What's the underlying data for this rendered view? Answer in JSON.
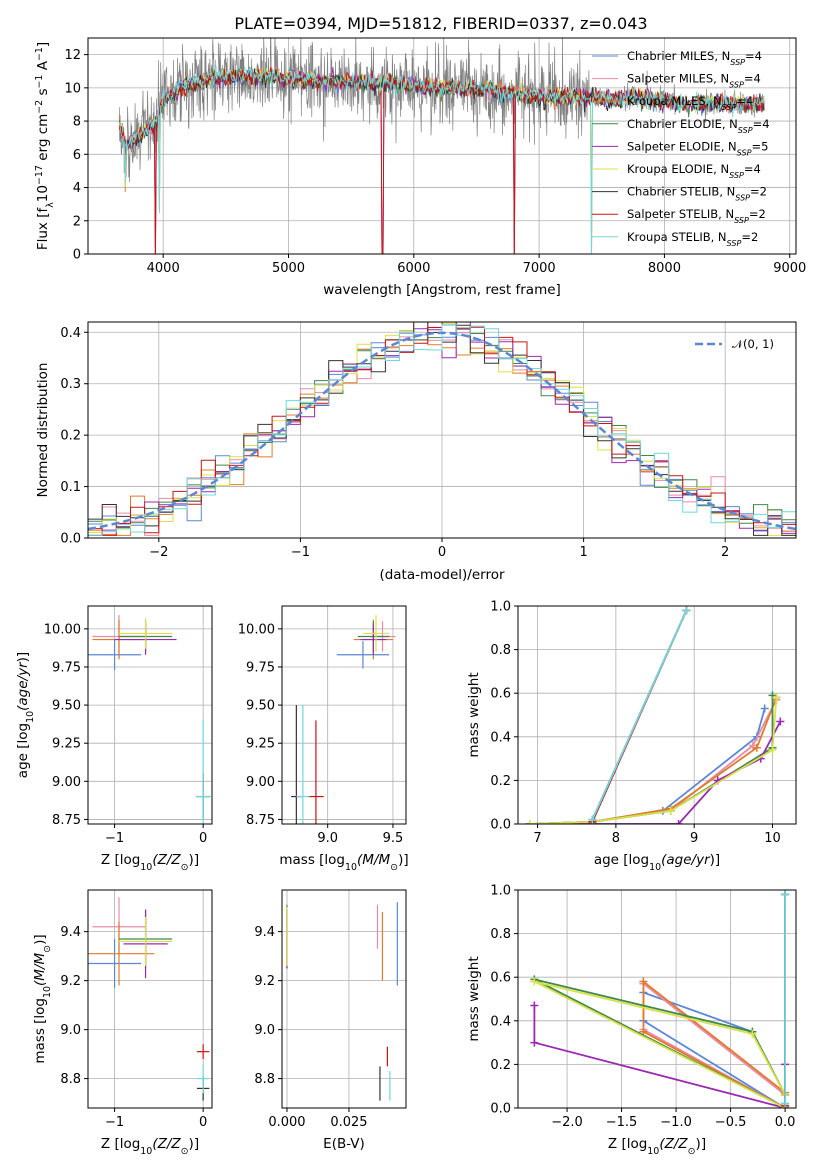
{
  "title": "PLATE=0394, MJD=51812, FIBERID=0337, z=0.043",
  "colors": {
    "chabrier_miles": "#5b87d6",
    "salpeter_miles": "#e98ba8",
    "kroupa_miles": "#e07b2a",
    "chabrier_elodie": "#3f8a4a",
    "salpeter_elodie": "#9b2ab0",
    "kroupa_elodie": "#d9e04a",
    "chabrier_stelib": "#333333",
    "salpeter_stelib": "#c81414",
    "kroupa_stelib": "#6fd8dc"
  },
  "legend_spectrum": [
    {
      "base": "Chabrier MILES, N",
      "sub": "SSP",
      "tail": "=4",
      "color": "#5b87d6"
    },
    {
      "base": "Salpeter MILES, N",
      "sub": "SSP",
      "tail": "=4",
      "color": "#e98ba8"
    },
    {
      "base": "Kroupa MILES, N",
      "sub": "SSP",
      "tail": "=4",
      "color": "#e07b2a"
    },
    {
      "base": "Chabrier ELODIE, N",
      "sub": "SSP",
      "tail": "=4",
      "color": "#3f8a4a"
    },
    {
      "base": "Salpeter ELODIE, N",
      "sub": "SSP",
      "tail": "=5",
      "color": "#9b2ab0"
    },
    {
      "base": "Kroupa ELODIE, N",
      "sub": "SSP",
      "tail": "=4",
      "color": "#d9e04a"
    },
    {
      "base": "Chabrier STELIB, N",
      "sub": "SSP",
      "tail": "=2",
      "color": "#333333"
    },
    {
      "base": "Salpeter STELIB, N",
      "sub": "SSP",
      "tail": "=2",
      "color": "#c81414"
    },
    {
      "base": "Kroupa STELIB, N",
      "sub": "SSP",
      "tail": "=2",
      "color": "#6fd8dc"
    }
  ],
  "legend_hist": {
    "label": "𝒩(0, 1)",
    "color": "#5b87d6"
  },
  "chart_data": [
    {
      "id": "spectrum",
      "type": "line",
      "xlabel": "wavelength [Angstrom, rest frame]",
      "ylabel": "Flux [f",
      "ylabel_sub": "λ",
      "ylabel_tail": "10",
      "ylabel_exp1": "−17",
      "ylabel_mid": " erg cm",
      "ylabel_exp2": "−2",
      "ylabel_mid2": " s",
      "ylabel_exp3": "−1",
      "ylabel_mid3": " A",
      "ylabel_exp4": "−1",
      "ylabel_end": "]",
      "xlim": [
        3400,
        9050
      ],
      "ylim": [
        0,
        13
      ],
      "xticks": [
        4000,
        5000,
        6000,
        7000,
        8000,
        9000
      ],
      "yticks": [
        0,
        2,
        4,
        6,
        8,
        10,
        12
      ],
      "xtick_labels": [
        "4000",
        "5000",
        "6000",
        "7000",
        "8000",
        "9000"
      ],
      "ytick_labels": [
        "0",
        "2",
        "4",
        "6",
        "8",
        "10",
        "12"
      ],
      "x_range_data": [
        3650,
        8800
      ],
      "continuum": [
        [
          3650,
          7.8
        ],
        [
          3700,
          6.5
        ],
        [
          3800,
          7.0
        ],
        [
          3900,
          7.6
        ],
        [
          3950,
          8.0
        ],
        [
          4000,
          9.2
        ],
        [
          4100,
          9.8
        ],
        [
          4200,
          10.2
        ],
        [
          4300,
          10.3
        ],
        [
          4400,
          10.6
        ],
        [
          4600,
          10.7
        ],
        [
          4800,
          10.7
        ],
        [
          5000,
          10.6
        ],
        [
          5200,
          10.4
        ],
        [
          5400,
          10.4
        ],
        [
          5600,
          10.3
        ],
        [
          5800,
          10.3
        ],
        [
          6000,
          10.1
        ],
        [
          6200,
          10.0
        ],
        [
          6400,
          9.95
        ],
        [
          6600,
          9.9
        ],
        [
          6800,
          9.6
        ],
        [
          7000,
          9.5
        ],
        [
          7200,
          9.4
        ],
        [
          7400,
          9.4
        ],
        [
          7600,
          9.3
        ],
        [
          7800,
          9.4
        ],
        [
          8000,
          9.2
        ],
        [
          8200,
          9.0
        ],
        [
          8400,
          9.1
        ],
        [
          8600,
          9.0
        ],
        [
          8800,
          9.05
        ]
      ]
    },
    {
      "id": "residual_hist",
      "type": "histogram",
      "xlabel": "(data-model)/error",
      "ylabel": "Normed distribution",
      "xlim": [
        -2.5,
        2.5
      ],
      "ylim": [
        0,
        0.42
      ],
      "xticks": [
        -2,
        -1,
        0,
        1,
        2
      ],
      "yticks": [
        0,
        0.1,
        0.2,
        0.3,
        0.4
      ],
      "xtick_labels": [
        "−2",
        "−1",
        "0",
        "1",
        "2"
      ],
      "ytick_labels": [
        "0.0",
        "0.1",
        "0.2",
        "0.3",
        "0.4"
      ],
      "bin_width": 0.1,
      "legend": "top-right"
    },
    {
      "id": "age_vs_Z",
      "type": "errorbar",
      "xlabel": "Z [log",
      "xlabel_sub": "10",
      "xlabel_tail": "(Z/Z",
      "xlabel_end": ")]",
      "ylabel": "age  [log",
      "ylabel_sub": "10",
      "ylabel_tail": "(age/yr)]",
      "xlim": [
        -1.3,
        0.1
      ],
      "ylim": [
        8.72,
        10.15
      ],
      "xticks": [
        -1,
        0
      ],
      "xtick_labels": [
        "−1",
        "0"
      ],
      "yticks": [
        8.75,
        9.0,
        9.25,
        9.5,
        9.75,
        10.0
      ],
      "ytick_labels": [
        "8.75",
        "9.00",
        "9.25",
        "9.50",
        "9.75",
        "10.00"
      ],
      "points": [
        {
          "x": -1.0,
          "xerr": 0.3,
          "y": 9.83,
          "yerr": 0.1,
          "color": "#5b87d6"
        },
        {
          "x": -0.95,
          "xerr": 0.3,
          "y": 9.95,
          "yerr": 0.14,
          "color": "#e98ba8"
        },
        {
          "x": -0.95,
          "xerr": 0.3,
          "y": 9.93,
          "yerr": 0.13,
          "color": "#e07b2a"
        },
        {
          "x": -0.65,
          "xerr": 0.3,
          "y": 9.95,
          "yerr": 0.1,
          "color": "#3f8a4a"
        },
        {
          "x": -0.65,
          "xerr": 0.35,
          "y": 9.93,
          "yerr": 0.1,
          "color": "#9b2ab0"
        },
        {
          "x": -0.65,
          "xerr": 0.3,
          "y": 9.97,
          "yerr": 0.1,
          "color": "#d9e04a"
        },
        {
          "x": 0.0,
          "xerr": 0.08,
          "y": 8.9,
          "yerr": 0.15,
          "color": "#333333"
        },
        {
          "x": 0.0,
          "xerr": 0.08,
          "y": 8.9,
          "yerr": 0.5,
          "color": "#6fd8dc"
        }
      ]
    },
    {
      "id": "age_vs_mass",
      "type": "errorbar",
      "xlabel": "mass [log",
      "xlabel_sub": "10",
      "xlabel_tail": "(M/M",
      "xlabel_end": ")]",
      "xlim": [
        8.65,
        9.6
      ],
      "ylim": [
        8.72,
        10.15
      ],
      "xticks": [
        9.0,
        9.5
      ],
      "xtick_labels": [
        "9.0",
        "9.5"
      ],
      "yticks": [
        8.75,
        9.0,
        9.25,
        9.5,
        9.75,
        10.0
      ],
      "ytick_labels": [
        "8.75",
        "9.00",
        "9.25",
        "9.50",
        "9.75",
        "10.00"
      ],
      "points": [
        {
          "x": 9.27,
          "xerr": 0.2,
          "y": 9.83,
          "yerr": 0.09,
          "color": "#5b87d6"
        },
        {
          "x": 9.42,
          "xerr": 0.1,
          "y": 9.95,
          "yerr": 0.1,
          "color": "#e98ba8"
        },
        {
          "x": 9.35,
          "xerr": 0.15,
          "y": 9.93,
          "yerr": 0.13,
          "color": "#e07b2a"
        },
        {
          "x": 9.35,
          "xerr": 0.12,
          "y": 9.95,
          "yerr": 0.1,
          "color": "#3f8a4a"
        },
        {
          "x": 9.35,
          "xerr": 0.1,
          "y": 9.93,
          "yerr": 0.1,
          "color": "#9b2ab0"
        },
        {
          "x": 9.37,
          "xerr": 0.1,
          "y": 9.97,
          "yerr": 0.12,
          "color": "#d9e04a"
        },
        {
          "x": 8.76,
          "xerr": 0.04,
          "y": 8.9,
          "yerr": 0.6,
          "color": "#333333"
        },
        {
          "x": 8.91,
          "xerr": 0.06,
          "y": 8.9,
          "yerr": 0.5,
          "color": "#c81414"
        },
        {
          "x": 8.81,
          "xerr": 0.05,
          "y": 8.9,
          "yerr": 0.6,
          "color": "#6fd8dc"
        }
      ]
    },
    {
      "id": "mass_weight_vs_age",
      "type": "line",
      "xlabel": "age  [log",
      "xlabel_sub": "10",
      "xlabel_tail": "(age/yr)]",
      "ylabel": "mass weight",
      "xlim": [
        6.75,
        10.3
      ],
      "ylim": [
        0,
        1.0
      ],
      "xticks": [
        7,
        8,
        9,
        10
      ],
      "xtick_labels": [
        "7",
        "8",
        "9",
        "10"
      ],
      "yticks": [
        0,
        0.2,
        0.4,
        0.6,
        0.8,
        1.0
      ],
      "ytick_labels": [
        "0.0",
        "0.2",
        "0.4",
        "0.6",
        "0.8",
        "1.0"
      ],
      "series": [
        {
          "color": "#5b87d6",
          "x": [
            6.9,
            7.7,
            8.6,
            9.8,
            9.9
          ],
          "y": [
            0.0,
            0.01,
            0.06,
            0.4,
            0.53
          ]
        },
        {
          "color": "#e98ba8",
          "x": [
            6.9,
            7.7,
            8.7,
            9.75,
            10.05
          ],
          "y": [
            0.0,
            0.01,
            0.06,
            0.36,
            0.57
          ]
        },
        {
          "color": "#e07b2a",
          "x": [
            6.9,
            7.7,
            8.7,
            9.8,
            10.05
          ],
          "y": [
            0.0,
            0.01,
            0.07,
            0.35,
            0.58
          ]
        },
        {
          "color": "#3f8a4a",
          "x": [
            6.9,
            7.7,
            8.7,
            10.0,
            10.0
          ],
          "y": [
            0.0,
            0.01,
            0.06,
            0.35,
            0.59
          ]
        },
        {
          "color": "#9b2ab0",
          "x": [
            6.9,
            7.7,
            8.8,
            9.3,
            9.85,
            10.1
          ],
          "y": [
            0.0,
            0.0,
            0.0,
            0.2,
            0.3,
            0.47
          ]
        },
        {
          "color": "#d9e04a",
          "x": [
            6.9,
            7.7,
            8.7,
            10.0,
            10.05
          ],
          "y": [
            0.0,
            0.01,
            0.06,
            0.34,
            0.58
          ]
        },
        {
          "color": "#333333",
          "x": [
            7.7,
            8.9
          ],
          "y": [
            0.02,
            0.98
          ]
        },
        {
          "color": "#c81414",
          "x": [
            7.7,
            8.9
          ],
          "y": [
            0.01,
            0.98
          ]
        },
        {
          "color": "#6fd8dc",
          "x": [
            7.7,
            8.9
          ],
          "y": [
            0.02,
            0.98
          ]
        }
      ]
    },
    {
      "id": "mass_vs_Z",
      "type": "errorbar",
      "xlabel": "Z [log",
      "xlabel_sub": "10",
      "xlabel_tail": "(Z/Z",
      "xlabel_end": ")]",
      "ylabel": "mass [log",
      "ylabel_sub": "10",
      "ylabel_tail": "(M/M",
      "ylabel_end": ")]",
      "xlim": [
        -1.3,
        0.1
      ],
      "ylim": [
        8.68,
        9.57
      ],
      "xticks": [
        -1,
        0
      ],
      "xtick_labels": [
        "−1",
        "0"
      ],
      "yticks": [
        8.8,
        9.0,
        9.2,
        9.4
      ],
      "ytick_labels": [
        "8.8",
        "9.0",
        "9.2",
        "9.4"
      ],
      "points": [
        {
          "x": -1.0,
          "xerr": 0.3,
          "y": 9.27,
          "yerr": 0.1,
          "color": "#5b87d6"
        },
        {
          "x": -0.95,
          "xerr": 0.3,
          "y": 9.42,
          "yerr": 0.12,
          "color": "#e98ba8"
        },
        {
          "x": -0.95,
          "xerr": 0.4,
          "y": 9.31,
          "yerr": 0.13,
          "color": "#e07b2a"
        },
        {
          "x": -0.65,
          "xerr": 0.3,
          "y": 9.37,
          "yerr": 0.12,
          "color": "#3f8a4a"
        },
        {
          "x": -0.65,
          "xerr": 0.25,
          "y": 9.35,
          "yerr": 0.14,
          "color": "#9b2ab0"
        },
        {
          "x": -0.65,
          "xerr": 0.3,
          "y": 9.36,
          "yerr": 0.1,
          "color": "#d9e04a"
        },
        {
          "x": 0.0,
          "xerr": 0.07,
          "y": 8.76,
          "yerr": 0.05,
          "color": "#333333"
        },
        {
          "x": 0.0,
          "xerr": 0.07,
          "y": 8.91,
          "yerr": 0.03,
          "color": "#c81414"
        },
        {
          "x": 0.0,
          "xerr": 0.06,
          "y": 8.8,
          "yerr": 0.06,
          "color": "#6fd8dc"
        }
      ]
    },
    {
      "id": "mass_vs_EBV",
      "type": "errorbar",
      "xlabel": "E(B-V)",
      "xlim": [
        -0.002,
        0.048
      ],
      "ylim": [
        8.68,
        9.57
      ],
      "xticks": [
        0.0,
        0.025
      ],
      "xtick_labels": [
        "0.000",
        "0.025"
      ],
      "yticks": [
        8.8,
        9.0,
        9.2,
        9.4
      ],
      "ytick_labels": [
        "8.8",
        "9.0",
        "9.2",
        "9.4"
      ],
      "points": [
        {
          "x": 0.0445,
          "xerr": 0,
          "y": 9.35,
          "yerr": 0.17,
          "color": "#5b87d6"
        },
        {
          "x": 0.0365,
          "xerr": 0,
          "y": 9.42,
          "yerr": 0.09,
          "color": "#e98ba8"
        },
        {
          "x": 0.0385,
          "xerr": 0,
          "y": 9.34,
          "yerr": 0.14,
          "color": "#e07b2a"
        },
        {
          "x": 0.0,
          "xerr": 0,
          "y": 9.38,
          "yerr": 0.13,
          "color": "#3f8a4a"
        },
        {
          "x": 0.0,
          "xerr": 0,
          "y": 9.37,
          "yerr": 0.12,
          "color": "#9b2ab0"
        },
        {
          "x": 0.0,
          "xerr": 0,
          "y": 9.38,
          "yerr": 0.12,
          "color": "#d9e04a"
        },
        {
          "x": 0.0375,
          "xerr": 0,
          "y": 8.78,
          "yerr": 0.07,
          "color": "#333333"
        },
        {
          "x": 0.0405,
          "xerr": 0,
          "y": 8.89,
          "yerr": 0.04,
          "color": "#c81414"
        },
        {
          "x": 0.0415,
          "xerr": 0,
          "y": 8.77,
          "yerr": 0.06,
          "color": "#6fd8dc"
        }
      ]
    },
    {
      "id": "mass_weight_vs_Z",
      "type": "line",
      "xlabel": "Z [log",
      "xlabel_sub": "10",
      "xlabel_tail": "(Z/Z",
      "xlabel_end": ")]",
      "ylabel": "mass weight",
      "xlim": [
        -2.45,
        0.1
      ],
      "ylim": [
        0,
        1.0
      ],
      "xticks": [
        -2.0,
        -1.5,
        -1.0,
        -0.5,
        0.0
      ],
      "xtick_labels": [
        "−2.0",
        "−1.5",
        "−1.0",
        "−0.5",
        "0.0"
      ],
      "yticks": [
        0,
        0.2,
        0.4,
        0.6,
        0.8,
        1.0
      ],
      "ytick_labels": [
        "0.0",
        "0.2",
        "0.4",
        "0.6",
        "0.8",
        "1.0"
      ],
      "series": [
        {
          "color": "#5b87d6",
          "x": [
            0.0,
            -0.3,
            -1.3,
            -1.3,
            0.0
          ],
          "y": [
            0.06,
            0.35,
            0.53,
            0.4,
            0.0
          ]
        },
        {
          "color": "#e98ba8",
          "x": [
            0.0,
            -1.3,
            -1.3,
            0.0
          ],
          "y": [
            0.06,
            0.57,
            0.36,
            0.0
          ]
        },
        {
          "color": "#e07b2a",
          "x": [
            0.0,
            -1.3,
            -1.3,
            0.0
          ],
          "y": [
            0.07,
            0.58,
            0.35,
            0.0
          ]
        },
        {
          "color": "#3f8a4a",
          "x": [
            0.0,
            -0.3,
            -2.3,
            0.0
          ],
          "y": [
            0.06,
            0.35,
            0.59,
            0.0
          ]
        },
        {
          "color": "#9b2ab0",
          "x": [
            -2.3,
            -2.3,
            0.0,
            0.0
          ],
          "y": [
            0.47,
            0.3,
            0.0,
            0.2
          ]
        },
        {
          "color": "#d9e04a",
          "x": [
            0.0,
            -0.3,
            -2.3,
            0.0
          ],
          "y": [
            0.06,
            0.34,
            0.58,
            0.0
          ]
        },
        {
          "color": "#333333",
          "x": [
            0.0,
            0.0
          ],
          "y": [
            0.02,
            0.98
          ]
        },
        {
          "color": "#c81414",
          "x": [
            0.0,
            0.0
          ],
          "y": [
            0.01,
            0.98
          ]
        },
        {
          "color": "#6fd8dc",
          "x": [
            0.0,
            0.0
          ],
          "y": [
            0.02,
            0.98
          ]
        }
      ]
    }
  ]
}
